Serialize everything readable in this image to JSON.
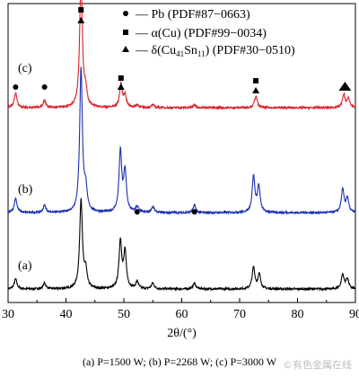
{
  "chart_data": {
    "type": "line",
    "xlabel": "2θ/(°)",
    "x_ticks": [
      30,
      40,
      50,
      60,
      70,
      80,
      90
    ],
    "xlim": [
      30,
      90
    ],
    "y_axis": "none",
    "series": [
      {
        "name": "(a)",
        "color": "#000000",
        "peaks": [
          [
            31.3,
            0.07
          ],
          [
            36.3,
            0.04
          ],
          [
            42.6,
            0.62
          ],
          [
            43.4,
            0.12
          ],
          [
            49.4,
            0.33
          ],
          [
            50.2,
            0.25
          ],
          [
            52.3,
            0.05
          ],
          [
            55.0,
            0.04
          ],
          [
            62.2,
            0.04
          ],
          [
            72.4,
            0.15
          ],
          [
            73.4,
            0.1
          ],
          [
            87.8,
            0.1
          ],
          [
            88.6,
            0.07
          ]
        ]
      },
      {
        "name": "(b)",
        "color": "#1a2fb0",
        "peaks": [
          [
            31.3,
            0.1
          ],
          [
            36.3,
            0.05
          ],
          [
            42.6,
            1.0
          ],
          [
            43.4,
            0.15
          ],
          [
            49.4,
            0.42
          ],
          [
            50.2,
            0.28
          ],
          [
            52.3,
            0.04
          ],
          [
            55.0,
            0.04
          ],
          [
            62.2,
            0.05
          ],
          [
            72.4,
            0.25
          ],
          [
            73.3,
            0.18
          ],
          [
            87.8,
            0.16
          ],
          [
            88.6,
            0.1
          ]
        ]
      },
      {
        "name": "(c)",
        "color": "#d9202a",
        "peaks": [
          [
            31.3,
            0.1
          ],
          [
            36.3,
            0.05
          ],
          [
            42.6,
            0.9
          ],
          [
            43.4,
            0.1
          ],
          [
            49.5,
            0.16
          ],
          [
            50.2,
            0.08
          ],
          [
            52.3,
            0.02
          ],
          [
            55.0,
            0.02
          ],
          [
            62.2,
            0.02
          ],
          [
            72.8,
            0.08
          ],
          [
            88.0,
            0.09
          ],
          [
            88.8,
            0.06
          ]
        ]
      }
    ],
    "legend": [
      {
        "marker": "circle",
        "label": "— Pb (PDF#87−0663)"
      },
      {
        "marker": "square",
        "label": "— α(Cu) (PDF#99−0034)"
      },
      {
        "marker": "triangle",
        "label": "— δ(Cu41Sn11) (PDF#30−0510)"
      }
    ],
    "annotations": [
      {
        "series": "(c)",
        "marker": "circle",
        "x": 31.3
      },
      {
        "series": "(c)",
        "marker": "circle",
        "x": 36.3
      },
      {
        "series": "(c)",
        "marker": "square",
        "x": 42.6
      },
      {
        "series": "(c)",
        "marker": "triangle",
        "x": 42.6
      },
      {
        "series": "(c)",
        "marker": "square",
        "x": 49.5
      },
      {
        "series": "(c)",
        "marker": "triangle",
        "x": 49.5
      },
      {
        "series": "(c)",
        "marker": "square",
        "x": 72.8
      },
      {
        "series": "(c)",
        "marker": "triangle",
        "x": 72.8
      },
      {
        "series": "(c)",
        "marker": "triangle",
        "x": 88.2
      },
      {
        "series": "(b)",
        "marker": "circle",
        "x": 52.3
      },
      {
        "series": "(b)",
        "marker": "circle",
        "x": 62.2
      }
    ]
  },
  "caption": "(a) P=1500 W; (b) P=2268 W; (c) P=3000 W",
  "watermark": "©有色金属在线"
}
